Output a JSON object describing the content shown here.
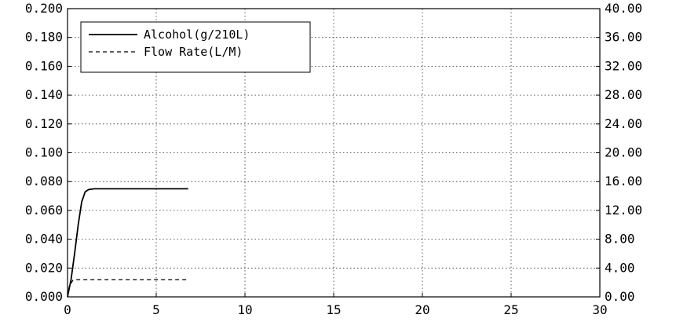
{
  "chart_data": {
    "type": "line",
    "title": "",
    "xlabel": "",
    "ylabel": "",
    "y2label": "",
    "xlim": [
      0,
      30
    ],
    "ylim": [
      0,
      0.2
    ],
    "y2lim": [
      0,
      40
    ],
    "x_ticks": [
      "0",
      "5",
      "10",
      "15",
      "20",
      "25",
      "30"
    ],
    "y_ticks": [
      "0.000",
      "0.020",
      "0.040",
      "0.060",
      "0.080",
      "0.100",
      "0.120",
      "0.140",
      "0.160",
      "0.180",
      "0.200"
    ],
    "y2_ticks": [
      "0.00",
      "4.00",
      "8.00",
      "12.00",
      "16.00",
      "20.00",
      "24.00",
      "28.00",
      "32.00",
      "36.00",
      "40.00"
    ],
    "grid": true,
    "legend_position": "top-left",
    "series": [
      {
        "name": "Alcohol(g/210L)",
        "axis": "left",
        "style": "solid",
        "color": "#000000",
        "x": [
          0,
          0.2,
          0.4,
          0.6,
          0.8,
          1.0,
          1.2,
          1.5,
          2.0,
          3.0,
          4.0,
          5.0,
          6.0,
          6.8
        ],
        "y": [
          0.0,
          0.012,
          0.03,
          0.05,
          0.066,
          0.073,
          0.0745,
          0.075,
          0.075,
          0.075,
          0.075,
          0.075,
          0.075,
          0.075
        ]
      },
      {
        "name": "Flow Rate(L/M)",
        "axis": "right",
        "style": "dashed",
        "color": "#000000",
        "x": [
          0,
          0.1,
          0.3,
          0.5,
          6.8
        ],
        "y": [
          0.0,
          1.5,
          2.3,
          2.4,
          2.4
        ]
      }
    ]
  }
}
